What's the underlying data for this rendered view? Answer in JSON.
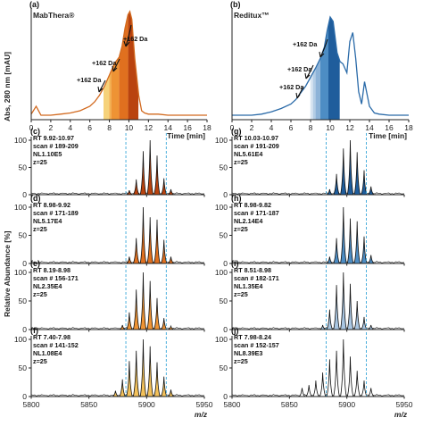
{
  "figure": {
    "ylabel_top": "Abs, 280 nm [mAU]",
    "ylabel_bottom": "Relative Abundance [%]",
    "xlabel_top": "Time [min]",
    "xlabel_bottom": "m/z"
  },
  "chart_data": [
    {
      "type": "area",
      "panel": "(a)",
      "title": "MabThera®",
      "xlabel": "Time [min]",
      "ylabel": "Abs, 280 nm [mAU]",
      "xlim": [
        0,
        18
      ],
      "xticks": [
        0,
        2,
        4,
        6,
        8,
        10,
        12,
        14,
        16,
        18
      ],
      "annotations": [
        "+162 Da",
        "+162 Da",
        "+162 Da"
      ],
      "trace": {
        "x": [
          0,
          0.5,
          1,
          2,
          3,
          4,
          5,
          6,
          6.5,
          7,
          7.5,
          8,
          8.5,
          9,
          9.3,
          9.6,
          9.9,
          10.1,
          10.3,
          10.6,
          11,
          11.3,
          11.6,
          12,
          13,
          14,
          15,
          16,
          17,
          18
        ],
        "y": [
          0.05,
          0.12,
          0.04,
          0.04,
          0.05,
          0.06,
          0.08,
          0.12,
          0.16,
          0.22,
          0.3,
          0.4,
          0.5,
          0.56,
          0.66,
          0.82,
          0.94,
          0.97,
          0.9,
          0.55,
          0.22,
          0.08,
          0.06,
          0.05,
          0.05,
          0.04,
          0.04,
          0.04,
          0.04,
          0.04
        ]
      },
      "fractions": [
        {
          "range": [
            7.4,
            7.98
          ],
          "color": "#f6d27a"
        },
        {
          "range": [
            7.98,
            8.19
          ],
          "color": "#f3b04f"
        },
        {
          "range": [
            8.19,
            8.98
          ],
          "color": "#ee9334"
        },
        {
          "range": [
            8.98,
            9.92
          ],
          "color": "#e0701f"
        },
        {
          "range": [
            9.92,
            10.97
          ],
          "color": "#b9430f"
        }
      ]
    },
    {
      "type": "area",
      "panel": "(b)",
      "title": "Reditux™",
      "xlabel": "Time [min]",
      "xlim": [
        0,
        18
      ],
      "xticks": [
        0,
        2,
        4,
        6,
        8,
        10,
        12,
        14,
        16,
        18
      ],
      "annotations": [
        "+162 Da",
        "+162 Da",
        "+162 Da"
      ],
      "trace": {
        "x": [
          0,
          1,
          2,
          3,
          4,
          5,
          6,
          6.5,
          7,
          7.5,
          8,
          8.5,
          9,
          9.4,
          9.7,
          10,
          10.3,
          10.7,
          11,
          11.3,
          11.7,
          12,
          12.3,
          12.6,
          12.9,
          13.2,
          13.5,
          14,
          14.5,
          15,
          16,
          17,
          18
        ],
        "y": [
          0.04,
          0.04,
          0.04,
          0.05,
          0.07,
          0.1,
          0.14,
          0.18,
          0.24,
          0.3,
          0.38,
          0.46,
          0.55,
          0.65,
          0.8,
          0.92,
          0.88,
          0.6,
          0.52,
          0.5,
          0.42,
          0.7,
          0.78,
          0.55,
          0.25,
          0.14,
          0.34,
          0.12,
          0.06,
          0.05,
          0.04,
          0.04,
          0.04
        ]
      },
      "fractions": [
        {
          "range": [
            7.98,
            8.24
          ],
          "color": "#d7e4f1"
        },
        {
          "range": [
            8.24,
            8.51
          ],
          "color": "#b3cde5"
        },
        {
          "range": [
            8.51,
            8.98
          ],
          "color": "#8db3d8"
        },
        {
          "range": [
            8.98,
            9.82
          ],
          "color": "#4d8dc4"
        },
        {
          "range": [
            9.82,
            10.97
          ],
          "color": "#1f5d9c"
        }
      ]
    },
    {
      "type": "bar",
      "panel_group": "mass spectra",
      "xlabel": "m/z",
      "ylabel": "Relative Abundance [%]",
      "xlim": [
        5800,
        5950
      ],
      "xticks": [
        5800,
        5850,
        5900,
        5950
      ],
      "ylim": [
        0,
        100
      ],
      "yticks": [
        0,
        50,
        100
      ],
      "reference_lines": [
        5882,
        5917
      ],
      "panels": [
        {
          "panel": "(c)",
          "rt": "RT 9.92-10.97",
          "scan": "scan # 189-209",
          "nl": "NL1.10E5",
          "z": "z=25",
          "fill": "#b9430f",
          "peaks": {
            "x": [
              5885,
              5891,
              5897,
              5903,
              5909,
              5915,
              5921
            ],
            "y": [
              8,
              28,
              80,
              100,
              72,
              30,
              10
            ]
          }
        },
        {
          "panel": "(d)",
          "rt": "RT 8.98-9.92",
          "scan": "scan # 171-189",
          "nl": "NL5.17E4",
          "z": "z=25",
          "fill": "#e0701f",
          "peaks": {
            "x": [
              5885,
              5891,
              5897,
              5903,
              5909,
              5915,
              5921
            ],
            "y": [
              12,
              45,
              100,
              82,
              78,
              42,
              12
            ]
          }
        },
        {
          "panel": "(e)",
          "rt": "RT 8.19-8.98",
          "scan": "scan # 156-171",
          "nl": "NL2.35E4",
          "z": "z=25",
          "fill": "#ee9334",
          "peaks": {
            "x": [
              5879,
              5885,
              5891,
              5897,
              5903,
              5909,
              5915,
              5921
            ],
            "y": [
              8,
              30,
              70,
              100,
              85,
              55,
              20,
              6
            ]
          }
        },
        {
          "panel": "(f)",
          "rt": "RT 7.40-7.98",
          "scan": "scan # 141-152",
          "nl": "NL1.08E4",
          "z": "z=25",
          "fill": "#f3c15a",
          "peaks": {
            "x": [
              5873,
              5879,
              5885,
              5891,
              5897,
              5903,
              5909,
              5915,
              5921
            ],
            "y": [
              10,
              30,
              62,
              80,
              100,
              88,
              60,
              35,
              12
            ]
          }
        },
        {
          "panel": "(g)",
          "rt": "RT 10.03-10.97",
          "scan": "scan # 191-209",
          "nl": "NL5.61E4",
          "z": "z=25",
          "fill": "#1f5d9c",
          "peaks": {
            "x": [
              5885,
              5891,
              5897,
              5903,
              5909,
              5915,
              5921
            ],
            "y": [
              10,
              38,
              85,
              100,
              78,
              45,
              15
            ]
          }
        },
        {
          "panel": "(h)",
          "rt": "RT 8.98-9.82",
          "scan": "scan # 171-187",
          "nl": "NL2.14E4",
          "z": "z=25",
          "fill": "#4d8dc4",
          "peaks": {
            "x": [
              5885,
              5891,
              5897,
              5903,
              5909,
              5915,
              5921
            ],
            "y": [
              12,
              45,
              100,
              80,
              75,
              48,
              15
            ]
          }
        },
        {
          "panel": "(i)",
          "rt": "RT 8.51-8.98",
          "scan": "scan # 182-171",
          "nl": "NL1.35E4",
          "z": "z=25",
          "fill": "#a9c6e2",
          "peaks": {
            "x": [
              5879,
              5885,
              5891,
              5897,
              5903,
              5909,
              5915,
              5921
            ],
            "y": [
              8,
              35,
              78,
              100,
              80,
              50,
              22,
              8
            ]
          }
        },
        {
          "panel": "(j)",
          "rt": "RT 7.98-8.24",
          "scan": "scan # 152-157",
          "nl": "NL8.39E3",
          "z": "z=25",
          "fill": "#ffffff",
          "peaks": {
            "x": [
              5861,
              5867,
              5873,
              5879,
              5885,
              5891,
              5897,
              5903,
              5909,
              5915,
              5921
            ],
            "y": [
              15,
              20,
              28,
              42,
              65,
              80,
              100,
              70,
              45,
              28,
              15
            ]
          }
        }
      ]
    }
  ]
}
